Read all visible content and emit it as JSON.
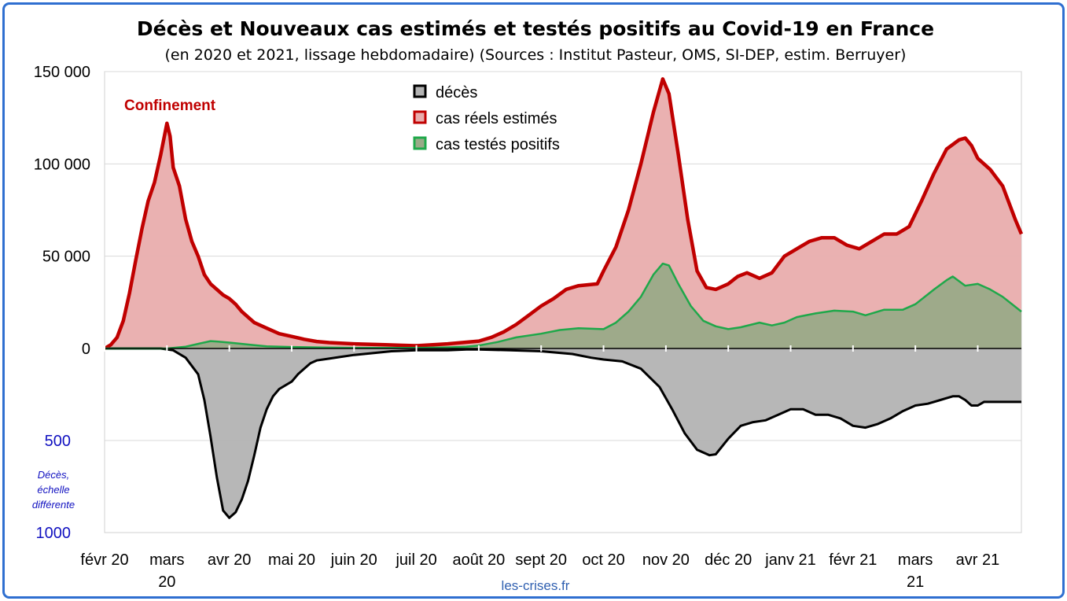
{
  "chart_data": {
    "type": "area",
    "title": "Décès et Nouveaux cas estimés et testés positifs au Covid-19 en France",
    "subtitle": "(en 2020 et 2021, lissage hebdomadaire) (Sources : Institut Pasteur, OMS, SI-DEP, estim. Berruyer)",
    "annotation": "Confinement",
    "source_label": "les-crises.fr",
    "deaths_note": [
      "Décès,",
      "échelle",
      "différente"
    ],
    "x_ticks": [
      {
        "t": 0,
        "lines": [
          "févr 20"
        ]
      },
      {
        "t": 1,
        "lines": [
          "mars",
          "20"
        ]
      },
      {
        "t": 2,
        "lines": [
          "avr 20"
        ]
      },
      {
        "t": 3,
        "lines": [
          "mai 20"
        ]
      },
      {
        "t": 4,
        "lines": [
          "juin 20"
        ]
      },
      {
        "t": 5,
        "lines": [
          "juil 20"
        ]
      },
      {
        "t": 6,
        "lines": [
          "août 20"
        ]
      },
      {
        "t": 7,
        "lines": [
          "sept 20"
        ]
      },
      {
        "t": 8,
        "lines": [
          "oct 20"
        ]
      },
      {
        "t": 9,
        "lines": [
          "nov 20"
        ]
      },
      {
        "t": 10,
        "lines": [
          "déc 20"
        ]
      },
      {
        "t": 11,
        "lines": [
          "janv 21"
        ]
      },
      {
        "t": 12,
        "lines": [
          "févr 21"
        ]
      },
      {
        "t": 13,
        "lines": [
          "mars",
          "21"
        ]
      },
      {
        "t": 14,
        "lines": [
          "avr 21"
        ]
      }
    ],
    "x_range": [
      0,
      14.7
    ],
    "y_upper": {
      "range": [
        0,
        150000
      ],
      "ticks": [
        {
          "v": 0,
          "label": "0"
        },
        {
          "v": 50000,
          "label": "50 000"
        },
        {
          "v": 100000,
          "label": "100 000"
        },
        {
          "v": 150000,
          "label": "150 000"
        }
      ]
    },
    "y_lower": {
      "range": [
        0,
        1000
      ],
      "ticks": [
        {
          "v": 500,
          "label": "500"
        },
        {
          "v": 1000,
          "label": "1000"
        }
      ]
    },
    "grid": true,
    "legend_position": "top-center",
    "series": [
      {
        "name": "décès",
        "axis": "lower",
        "line_color": "#000000",
        "fill_color": "#b3b3b3",
        "points": [
          [
            0,
            0
          ],
          [
            0.9,
            0
          ],
          [
            1.1,
            10
          ],
          [
            1.3,
            50
          ],
          [
            1.5,
            140
          ],
          [
            1.6,
            280
          ],
          [
            1.7,
            480
          ],
          [
            1.8,
            700
          ],
          [
            1.9,
            880
          ],
          [
            2.0,
            920
          ],
          [
            2.1,
            890
          ],
          [
            2.2,
            820
          ],
          [
            2.3,
            720
          ],
          [
            2.4,
            580
          ],
          [
            2.5,
            430
          ],
          [
            2.6,
            330
          ],
          [
            2.7,
            260
          ],
          [
            2.8,
            220
          ],
          [
            3.0,
            180
          ],
          [
            3.1,
            140
          ],
          [
            3.2,
            110
          ],
          [
            3.3,
            80
          ],
          [
            3.4,
            65
          ],
          [
            3.6,
            55
          ],
          [
            3.8,
            45
          ],
          [
            4.0,
            35
          ],
          [
            4.3,
            25
          ],
          [
            4.6,
            15
          ],
          [
            5.0,
            10
          ],
          [
            5.5,
            10
          ],
          [
            5.8,
            5
          ],
          [
            6.0,
            5
          ],
          [
            6.5,
            10
          ],
          [
            7.0,
            15
          ],
          [
            7.5,
            30
          ],
          [
            7.8,
            50
          ],
          [
            8.0,
            60
          ],
          [
            8.3,
            70
          ],
          [
            8.6,
            110
          ],
          [
            8.9,
            210
          ],
          [
            9.1,
            330
          ],
          [
            9.3,
            460
          ],
          [
            9.5,
            550
          ],
          [
            9.7,
            580
          ],
          [
            9.8,
            575
          ],
          [
            10.0,
            490
          ],
          [
            10.2,
            420
          ],
          [
            10.4,
            400
          ],
          [
            10.6,
            390
          ],
          [
            10.8,
            360
          ],
          [
            11.0,
            330
          ],
          [
            11.2,
            330
          ],
          [
            11.4,
            360
          ],
          [
            11.6,
            360
          ],
          [
            11.8,
            380
          ],
          [
            12.0,
            420
          ],
          [
            12.2,
            430
          ],
          [
            12.4,
            410
          ],
          [
            12.6,
            380
          ],
          [
            12.8,
            340
          ],
          [
            13.0,
            310
          ],
          [
            13.2,
            300
          ],
          [
            13.4,
            280
          ],
          [
            13.6,
            260
          ],
          [
            13.7,
            260
          ],
          [
            13.8,
            280
          ],
          [
            13.9,
            310
          ],
          [
            14.0,
            310
          ],
          [
            14.1,
            290
          ],
          [
            14.3,
            290
          ],
          [
            14.5,
            290
          ],
          [
            14.7,
            290
          ]
        ]
      },
      {
        "name": "cas réels estimés",
        "axis": "upper",
        "line_color": "#c00000",
        "fill_color": "#e9adad",
        "points": [
          [
            0,
            0
          ],
          [
            0.1,
            2000
          ],
          [
            0.2,
            6000
          ],
          [
            0.3,
            15000
          ],
          [
            0.4,
            30000
          ],
          [
            0.5,
            48000
          ],
          [
            0.6,
            65000
          ],
          [
            0.7,
            80000
          ],
          [
            0.8,
            90000
          ],
          [
            0.9,
            105000
          ],
          [
            1.0,
            122000
          ],
          [
            1.05,
            115000
          ],
          [
            1.1,
            98000
          ],
          [
            1.2,
            88000
          ],
          [
            1.3,
            70000
          ],
          [
            1.4,
            58000
          ],
          [
            1.5,
            50000
          ],
          [
            1.6,
            40000
          ],
          [
            1.7,
            35000
          ],
          [
            1.8,
            32000
          ],
          [
            1.9,
            29000
          ],
          [
            2.0,
            27000
          ],
          [
            2.1,
            24000
          ],
          [
            2.2,
            20000
          ],
          [
            2.3,
            17000
          ],
          [
            2.4,
            14000
          ],
          [
            2.6,
            11000
          ],
          [
            2.8,
            8000
          ],
          [
            3.0,
            6500
          ],
          [
            3.2,
            5000
          ],
          [
            3.4,
            3800
          ],
          [
            3.6,
            3200
          ],
          [
            4.0,
            2500
          ],
          [
            4.5,
            2000
          ],
          [
            5.0,
            1500
          ],
          [
            5.5,
            2500
          ],
          [
            6.0,
            4000
          ],
          [
            6.2,
            6000
          ],
          [
            6.4,
            9000
          ],
          [
            6.6,
            13000
          ],
          [
            6.8,
            18000
          ],
          [
            7.0,
            23000
          ],
          [
            7.2,
            27000
          ],
          [
            7.4,
            32000
          ],
          [
            7.6,
            34000
          ],
          [
            7.9,
            35000
          ],
          [
            8.0,
            42000
          ],
          [
            8.2,
            55000
          ],
          [
            8.4,
            75000
          ],
          [
            8.6,
            100000
          ],
          [
            8.8,
            128000
          ],
          [
            8.95,
            146000
          ],
          [
            9.05,
            138000
          ],
          [
            9.2,
            105000
          ],
          [
            9.35,
            70000
          ],
          [
            9.5,
            42000
          ],
          [
            9.65,
            33000
          ],
          [
            9.8,
            32000
          ],
          [
            10.0,
            35000
          ],
          [
            10.15,
            39000
          ],
          [
            10.3,
            41000
          ],
          [
            10.5,
            38000
          ],
          [
            10.7,
            41000
          ],
          [
            10.9,
            50000
          ],
          [
            11.1,
            54000
          ],
          [
            11.3,
            58000
          ],
          [
            11.5,
            60000
          ],
          [
            11.7,
            60000
          ],
          [
            11.9,
            56000
          ],
          [
            12.1,
            54000
          ],
          [
            12.3,
            58000
          ],
          [
            12.5,
            62000
          ],
          [
            12.7,
            62000
          ],
          [
            12.9,
            66000
          ],
          [
            13.1,
            80000
          ],
          [
            13.3,
            95000
          ],
          [
            13.5,
            108000
          ],
          [
            13.7,
            113000
          ],
          [
            13.8,
            114000
          ],
          [
            13.9,
            110000
          ],
          [
            14.0,
            103000
          ],
          [
            14.2,
            97000
          ],
          [
            14.4,
            88000
          ],
          [
            14.6,
            70000
          ],
          [
            14.7,
            62000
          ]
        ]
      },
      {
        "name": "cas testés positifs",
        "axis": "upper",
        "line_color": "#1fa84a",
        "fill_color": "#9aaa88",
        "points": [
          [
            0,
            0
          ],
          [
            1.0,
            0
          ],
          [
            1.3,
            1000
          ],
          [
            1.5,
            2500
          ],
          [
            1.7,
            4000
          ],
          [
            1.8,
            3800
          ],
          [
            2.0,
            3200
          ],
          [
            2.2,
            2500
          ],
          [
            2.4,
            1800
          ],
          [
            2.6,
            1200
          ],
          [
            3.0,
            800
          ],
          [
            3.5,
            500
          ],
          [
            4.0,
            300
          ],
          [
            5.0,
            300
          ],
          [
            5.5,
            600
          ],
          [
            5.8,
            1000
          ],
          [
            6.0,
            1600
          ],
          [
            6.3,
            3500
          ],
          [
            6.6,
            6000
          ],
          [
            7.0,
            8000
          ],
          [
            7.3,
            10000
          ],
          [
            7.6,
            11000
          ],
          [
            8.0,
            10500
          ],
          [
            8.2,
            14000
          ],
          [
            8.4,
            20000
          ],
          [
            8.6,
            28000
          ],
          [
            8.8,
            40000
          ],
          [
            8.95,
            46000
          ],
          [
            9.05,
            45000
          ],
          [
            9.2,
            35000
          ],
          [
            9.4,
            23000
          ],
          [
            9.6,
            15000
          ],
          [
            9.8,
            12000
          ],
          [
            10.0,
            10500
          ],
          [
            10.2,
            11500
          ],
          [
            10.5,
            14000
          ],
          [
            10.7,
            12500
          ],
          [
            10.9,
            14000
          ],
          [
            11.1,
            17000
          ],
          [
            11.4,
            19000
          ],
          [
            11.7,
            20500
          ],
          [
            12.0,
            20000
          ],
          [
            12.2,
            18000
          ],
          [
            12.5,
            21000
          ],
          [
            12.8,
            21000
          ],
          [
            13.0,
            24000
          ],
          [
            13.3,
            32000
          ],
          [
            13.5,
            37000
          ],
          [
            13.6,
            39000
          ],
          [
            13.8,
            34000
          ],
          [
            14.0,
            35000
          ],
          [
            14.2,
            32000
          ],
          [
            14.4,
            28000
          ],
          [
            14.7,
            20000
          ]
        ]
      }
    ]
  }
}
